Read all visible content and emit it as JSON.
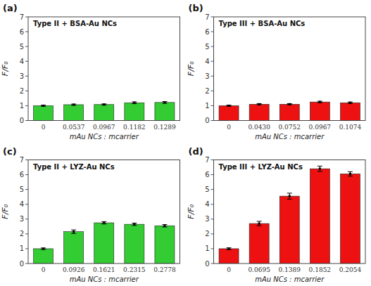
{
  "chart_data": [
    {
      "type": "bar",
      "title": "Type II + BSA-Au NCs",
      "annotations": [
        "(a)"
      ],
      "x_label": "mAu NCs : mcarrier",
      "y_label": "F/F₀",
      "categories": [
        "0",
        "0.0537",
        "0.0967",
        "0.1182",
        "0.1289"
      ],
      "values": [
        1.0,
        1.07,
        1.08,
        1.2,
        1.22
      ],
      "errors": [
        0.04,
        0.04,
        0.04,
        0.06,
        0.06
      ],
      "color": "#33cc33",
      "ylim": [
        0,
        7
      ],
      "yticks": [
        0,
        1,
        2,
        3,
        4,
        5,
        6,
        7
      ],
      "grid": false
    },
    {
      "type": "bar",
      "title": "Type III + BSA-Au NCs",
      "annotations": [
        "(b)"
      ],
      "x_label": "mAu NCs : mcarrier",
      "y_label": "F/F₀",
      "categories": [
        "0",
        "0.0430",
        "0.0752",
        "0.0967",
        "0.1074"
      ],
      "values": [
        1.0,
        1.1,
        1.1,
        1.25,
        1.2
      ],
      "errors": [
        0.04,
        0.04,
        0.04,
        0.05,
        0.05
      ],
      "color": "#ee1111",
      "ylim": [
        0,
        7
      ],
      "yticks": [
        0,
        1,
        2,
        3,
        4,
        5,
        6,
        7
      ],
      "grid": false
    },
    {
      "type": "bar",
      "title": "Type II + LYZ-Au NCs",
      "annotations": [
        "(c)"
      ],
      "x_label": "mAu NCs : mcarrier",
      "y_label": "F/F₀",
      "categories": [
        "0",
        "0.0926",
        "0.1621",
        "0.2315",
        "0.2778"
      ],
      "values": [
        1.0,
        2.15,
        2.75,
        2.65,
        2.55
      ],
      "errors": [
        0.05,
        0.12,
        0.08,
        0.08,
        0.08
      ],
      "color": "#33cc33",
      "ylim": [
        0,
        7
      ],
      "yticks": [
        0,
        1,
        2,
        3,
        4,
        5,
        6,
        7
      ],
      "grid": false
    },
    {
      "type": "bar",
      "title": "Type III + LYZ-Au NCs",
      "annotations": [
        "(d)"
      ],
      "x_label": "mAu NCs : mcarrier",
      "y_label": "F/F₀",
      "categories": [
        "0",
        "0.0695",
        "0.1389",
        "0.1852",
        "0.2054"
      ],
      "values": [
        1.0,
        2.7,
        4.55,
        6.4,
        6.05
      ],
      "errors": [
        0.06,
        0.15,
        0.2,
        0.18,
        0.15
      ],
      "color": "#ee1111",
      "ylim": [
        0,
        7
      ],
      "yticks": [
        0,
        1,
        2,
        3,
        4,
        5,
        6,
        7
      ],
      "grid": false
    }
  ]
}
